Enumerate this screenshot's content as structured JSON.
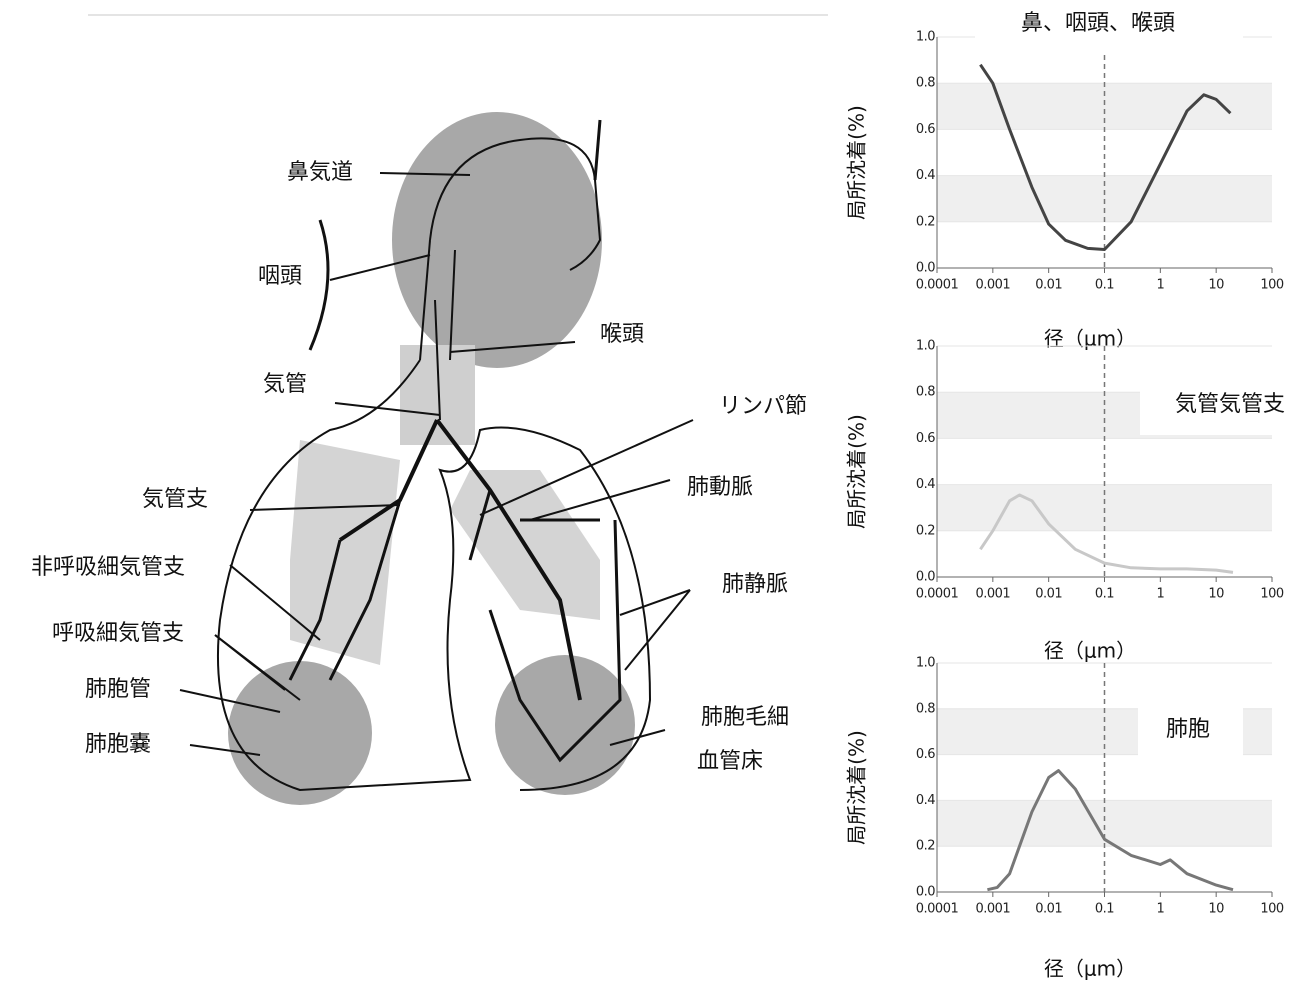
{
  "diagram": {
    "labels": [
      "鼻気道",
      "咽頭",
      "喉頭",
      "気管",
      "リンパ節",
      "気管支",
      "肺動脈",
      "非呼吸細気管支",
      "肺静脈",
      "呼吸細気管支",
      "肺胞管",
      "肺胞嚢",
      "肺胞毛細",
      "血管床"
    ]
  },
  "chart_data": [
    {
      "type": "line",
      "title": "鼻、咽頭、喉頭",
      "x_label": "径（μm）",
      "y_label": "局所沈着(%)",
      "x": [
        0.0006,
        0.001,
        0.002,
        0.005,
        0.01,
        0.02,
        0.05,
        0.1,
        0.3,
        1,
        3,
        6,
        10,
        18
      ],
      "values": [
        0.88,
        0.8,
        0.6,
        0.35,
        0.19,
        0.12,
        0.085,
        0.08,
        0.2,
        0.45,
        0.68,
        0.75,
        0.73,
        0.67
      ],
      "color": "#444444",
      "xscale": "log",
      "xlim": [
        0.0001,
        100
      ],
      "ylim": [
        0,
        1
      ],
      "xticks": [
        0.0001,
        0.001,
        0.01,
        0.1,
        1,
        10,
        100
      ],
      "yticks": [
        {
          "value": 0,
          "label": "0.0"
        },
        0.2,
        0.4,
        0.6,
        0.8,
        {
          "value": 1,
          "label": "1.0"
        }
      ],
      "grid": true,
      "vline": 0.1
    },
    {
      "type": "line",
      "title": "気管気管支",
      "x_label": "径（μm）",
      "y_label": "局所沈着(%)",
      "x": [
        0.0006,
        0.001,
        0.002,
        0.003,
        0.005,
        0.01,
        0.03,
        0.1,
        0.3,
        1,
        3,
        10,
        20
      ],
      "values": [
        0.12,
        0.2,
        0.33,
        0.355,
        0.33,
        0.23,
        0.12,
        0.06,
        0.04,
        0.035,
        0.035,
        0.03,
        0.02
      ],
      "color": "#c8c8c8",
      "xscale": "log",
      "xlim": [
        0.0001,
        100
      ],
      "ylim": [
        0,
        1
      ],
      "xticks": [
        0.0001,
        0.001,
        0.01,
        0.1,
        1,
        10,
        100
      ],
      "yticks": [
        {
          "value": 0,
          "label": "0.0"
        },
        0.2,
        0.4,
        0.6,
        0.8,
        {
          "value": 1,
          "label": "1.0"
        }
      ],
      "grid": true,
      "vline": 0.1
    },
    {
      "type": "line",
      "title": "肺胞",
      "x_label": "径（μm）",
      "y_label": "局所沈着(%)",
      "x": [
        0.0008,
        0.0012,
        0.002,
        0.005,
        0.01,
        0.015,
        0.03,
        0.1,
        0.3,
        1,
        1.5,
        3,
        10,
        20
      ],
      "values": [
        0.01,
        0.02,
        0.08,
        0.35,
        0.5,
        0.53,
        0.45,
        0.23,
        0.16,
        0.12,
        0.14,
        0.08,
        0.03,
        0.01
      ],
      "color": "#777777",
      "xscale": "log",
      "xlim": [
        0.0001,
        100
      ],
      "ylim": [
        0,
        1
      ],
      "xticks": [
        0.0001,
        0.001,
        0.01,
        0.1,
        1,
        10,
        100
      ],
      "yticks": [
        {
          "value": 0,
          "label": "0.0"
        },
        0.2,
        0.4,
        0.6,
        0.8,
        {
          "value": 1,
          "label": "1.0"
        }
      ],
      "grid": true,
      "vline": 0.1
    }
  ]
}
